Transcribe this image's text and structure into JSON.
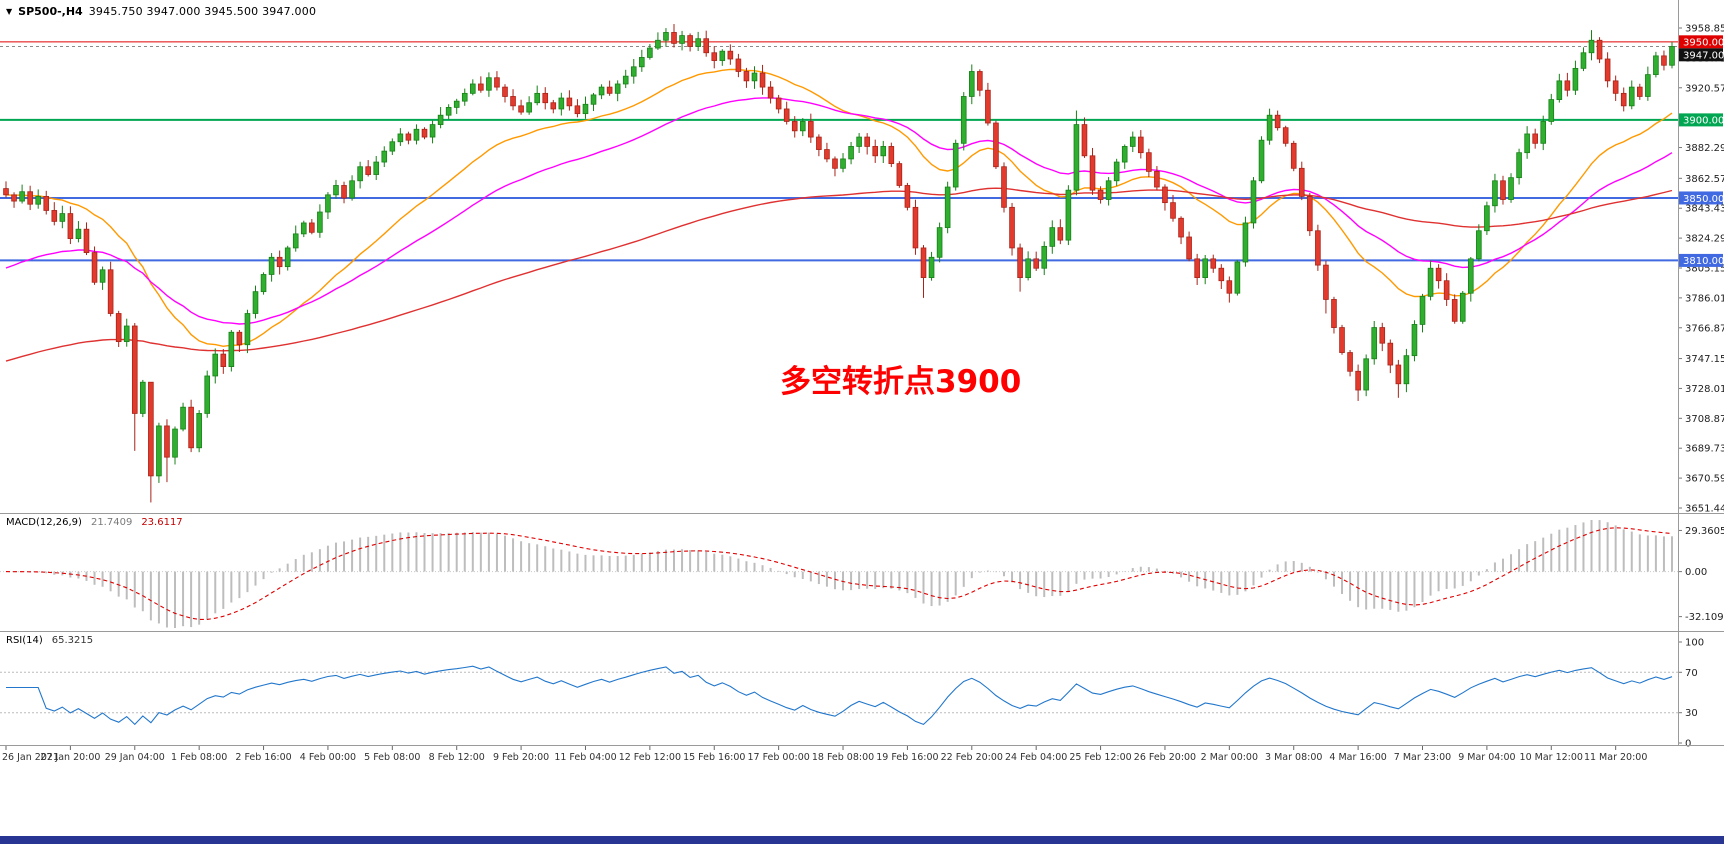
{
  "header": {
    "symbol": "SP500-,H4",
    "ohlc": "3945.750 3947.000 3945.500 3947.000"
  },
  "annotation": {
    "text": "多空转折点3900",
    "color": "#FF0000"
  },
  "price_axis": {
    "range": {
      "min": 3651.44,
      "max": 3958.85
    },
    "ticks": [
      "3958.850",
      "3939.710",
      "3920.570",
      "3882.290",
      "3862.570",
      "3843.430",
      "3824.290",
      "3805.150",
      "3786.010",
      "3766.870",
      "3747.150",
      "3728.010",
      "3708.870",
      "3689.730",
      "3670.590",
      "3651.440"
    ],
    "tags": [
      {
        "label": "3950.000",
        "value": 3950.0,
        "bg": "#E00000",
        "fg": "#FFFFFF"
      },
      {
        "label": "3947.000",
        "value": 3947.0,
        "bg": "#111111",
        "fg": "#FFFFFF"
      },
      {
        "label": "3900.000",
        "value": 3900.0,
        "bg": "#00A651",
        "fg": "#FFFFFF"
      },
      {
        "label": "3850.000",
        "value": 3850.0,
        "bg": "#4169E1",
        "fg": "#FFFFFF"
      },
      {
        "label": "3810.000",
        "value": 3810.0,
        "bg": "#4169E1",
        "fg": "#FFFFFF"
      }
    ]
  },
  "hlines": [
    {
      "value": 3950,
      "color": "#E00000",
      "width": 1
    },
    {
      "value": 3947,
      "color": "#8a8a8a",
      "width": 1,
      "dash": "3 3"
    },
    {
      "value": 3900,
      "color": "#00A651",
      "width": 2
    },
    {
      "value": 3850,
      "color": "#4169E1",
      "width": 2
    },
    {
      "value": 3810,
      "color": "#4169E1",
      "width": 2
    }
  ],
  "chart_data": {
    "type": "candlestick",
    "symbol": "SP500-",
    "timeframe": "H4",
    "first_open": 3856,
    "x_labels": [
      "26 Jan 2021",
      "27 Jan 20:00",
      "29 Jan 04:00",
      "1 Feb 08:00",
      "2 Feb 16:00",
      "4 Feb 00:00",
      "5 Feb 08:00",
      "8 Feb 12:00",
      "9 Feb 20:00",
      "11 Feb 04:00",
      "12 Feb 12:00",
      "15 Feb 16:00",
      "17 Feb 00:00",
      "18 Feb 08:00",
      "19 Feb 16:00",
      "22 Feb 20:00",
      "24 Feb 04:00",
      "25 Feb 12:00",
      "26 Feb 20:00",
      "2 Mar 00:00",
      "3 Mar 08:00",
      "4 Mar 16:00",
      "7 Mar 23:00",
      "9 Mar 04:00",
      "10 Mar 12:00",
      "11 Mar 20:00"
    ],
    "closes": [
      3852,
      3848,
      3854,
      3846,
      3851,
      3842,
      3835,
      3840,
      3824,
      3830,
      3815,
      3796,
      3804,
      3776,
      3758,
      3768,
      3712,
      3732,
      3672,
      3704,
      3684,
      3702,
      3716,
      3690,
      3712,
      3736,
      3750,
      3742,
      3764,
      3756,
      3776,
      3790,
      3801,
      3812,
      3806,
      3818,
      3827,
      3834,
      3828,
      3841,
      3852,
      3858,
      3850,
      3861,
      3870,
      3865,
      3873,
      3880,
      3886,
      3891,
      3887,
      3894,
      3889,
      3897,
      3903,
      3908,
      3912,
      3917,
      3923,
      3919,
      3927,
      3921,
      3915,
      3909,
      3905,
      3911,
      3917,
      3911,
      3907,
      3914,
      3909,
      3904,
      3910,
      3916,
      3921,
      3917,
      3923,
      3928,
      3934,
      3940,
      3946,
      3951,
      3956,
      3949,
      3954,
      3947,
      3952,
      3943,
      3938,
      3944,
      3939,
      3931,
      3925,
      3930,
      3921,
      3914,
      3907,
      3899,
      3893,
      3899,
      3889,
      3881,
      3875,
      3869,
      3875,
      3883,
      3889,
      3883,
      3877,
      3883,
      3872,
      3858,
      3844,
      3818,
      3799,
      3812,
      3831,
      3857,
      3885,
      3915,
      3931,
      3919,
      3898,
      3870,
      3844,
      3818,
      3799,
      3811,
      3805,
      3819,
      3831,
      3823,
      3855,
      3897,
      3877,
      3855,
      3849,
      3861,
      3873,
      3883,
      3889,
      3879,
      3867,
      3857,
      3847,
      3837,
      3825,
      3811,
      3799,
      3811,
      3805,
      3797,
      3789,
      3809,
      3834,
      3861,
      3887,
      3903,
      3895,
      3885,
      3869,
      3851,
      3829,
      3807,
      3785,
      3767,
      3751,
      3739,
      3727,
      3747,
      3767,
      3757,
      3743,
      3731,
      3749,
      3769,
      3787,
      3805,
      3797,
      3785,
      3771,
      3789,
      3811,
      3829,
      3845,
      3861,
      3849,
      3863,
      3879,
      3891,
      3885,
      3899,
      3913,
      3925,
      3919,
      3933,
      3943,
      3951,
      3939,
      3925,
      3917,
      3909,
      3921,
      3915,
      3929,
      3941,
      3935,
      3947
    ],
    "wick_overrides": {
      "16": {
        "low": 3688
      },
      "18": {
        "low": 3655,
        "high": 3712
      },
      "20": {
        "low": 3668
      },
      "82": {
        "high": 3958.8
      },
      "84": {
        "high": 3957
      },
      "114": {
        "low": 3786
      },
      "126": {
        "low": 3790
      },
      "133": {
        "high": 3906
      },
      "152": {
        "low": 3783
      },
      "164": {
        "low": 3776
      },
      "168": {
        "low": 3720
      },
      "173": {
        "low": 3722
      },
      "197": {
        "high": 3957.5
      },
      "207": {
        "high": 3950,
        "low": 3933
      }
    },
    "up": {
      "fill": "#2FAE2F",
      "stroke": "#178017"
    },
    "down": {
      "fill": "#E23B2E",
      "stroke": "#A82318"
    },
    "moving_averages": [
      {
        "name": "ma-fast-orange",
        "period": 24,
        "seed": 3852,
        "color": "#FF9900"
      },
      {
        "name": "ma-mid-magenta",
        "period": 45,
        "seed": 3803,
        "color": "#FF00FF"
      },
      {
        "name": "ma-slow-red",
        "period": 140,
        "seed": 3744,
        "color": "#E03131"
      }
    ]
  },
  "macd": {
    "label": "MACD(12,26,9)",
    "value_main": "21.7409",
    "value_signal": "23.6117",
    "fast": 12,
    "slow": 26,
    "signal": 9,
    "hist_color": "#BDBDBD",
    "signal_color": "#E00000",
    "ticks": [
      {
        "label": "29.3605",
        "value": 29.3605
      },
      {
        "label": "0.00",
        "value": 0
      },
      {
        "label": "-32.1096",
        "value": -32.1096
      }
    ]
  },
  "rsi": {
    "label": "RSI(14)",
    "value": "65.3215",
    "period": 14,
    "color": "#2277CC",
    "levels": [
      70,
      30
    ],
    "ticks": [
      {
        "label": "100",
        "value": 100
      },
      {
        "label": "70",
        "value": 70
      },
      {
        "label": "30",
        "value": 30
      },
      {
        "label": "0",
        "value": 0
      }
    ]
  },
  "chrome": {
    "panel_border": "#9A9A9A",
    "axis_text": "#222222",
    "time_text": "#333333",
    "scrollbar_color": "#283593",
    "bg": "#FFFFFF"
  }
}
